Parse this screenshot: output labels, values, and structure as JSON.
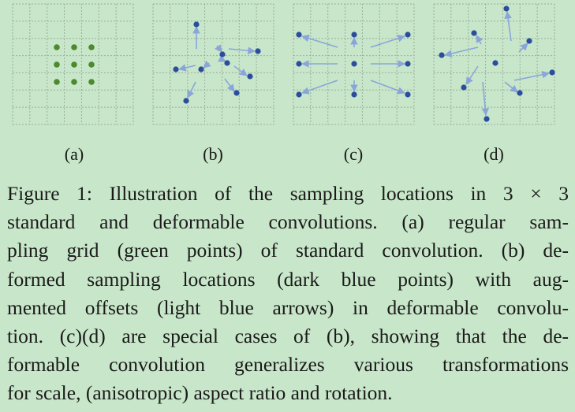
{
  "panels": [
    {
      "label": "(a)"
    },
    {
      "label": "(b)"
    },
    {
      "label": "(c)"
    },
    {
      "label": "(d)"
    }
  ],
  "colors": {
    "background": "#c8e6c9",
    "grid_line": "#9aaf9b",
    "green_point": "#4b8a2e",
    "dark_blue_point": "#2b4d9e",
    "light_blue_arrow": "#8aa6d9"
  },
  "caption": {
    "lines": [
      "Figure 1: Illustration of the sampling locations in 3 × 3",
      "standard and deformable convolutions. (a) regular sam-",
      "pling grid (green points) of standard convolution. (b) de-",
      "formed sampling locations (dark blue points) with aug-",
      "mented offsets (light blue arrows) in deformable convolu-",
      "tion. (c)(d) are special cases of (b), showing that the de-",
      "formable convolution generalizes various transformations",
      "for scale, (anisotropic) aspect ratio and rotation."
    ]
  }
}
